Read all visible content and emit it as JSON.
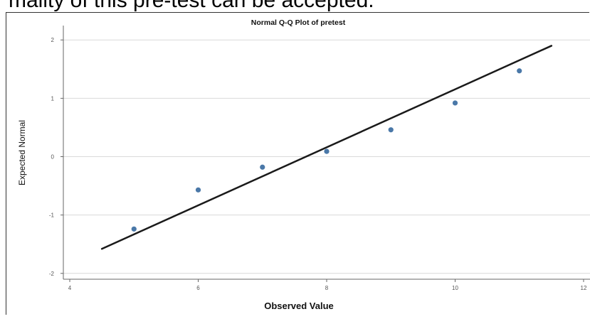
{
  "page": {
    "caption_fragment": "mality of this pre-test can be accepted."
  },
  "chart_data": {
    "type": "scatter",
    "title": "Normal Q-Q Plot of pretest",
    "xlabel": "Observed Value",
    "ylabel": "Expected Normal",
    "xlim": [
      3.9,
      12.1
    ],
    "ylim": [
      -2.1,
      2.1
    ],
    "x_ticks": [
      4,
      6,
      8,
      10,
      12
    ],
    "y_ticks": [
      2,
      1,
      0,
      -1,
      -2
    ],
    "grid": "horizontal",
    "points": [
      {
        "x": 5,
        "y": -1.24
      },
      {
        "x": 6,
        "y": -0.57
      },
      {
        "x": 7,
        "y": -0.18
      },
      {
        "x": 8,
        "y": 0.09
      },
      {
        "x": 9,
        "y": 0.46
      },
      {
        "x": 10,
        "y": 0.92
      },
      {
        "x": 11,
        "y": 1.47
      }
    ],
    "reference_line": {
      "x": [
        4.5,
        11.5
      ],
      "y": [
        -1.58,
        1.9
      ]
    },
    "colors": {
      "point": "#4a78a8",
      "line": "#1a1a1a",
      "grid": "#d9d9d9",
      "axis": "#666666"
    }
  }
}
